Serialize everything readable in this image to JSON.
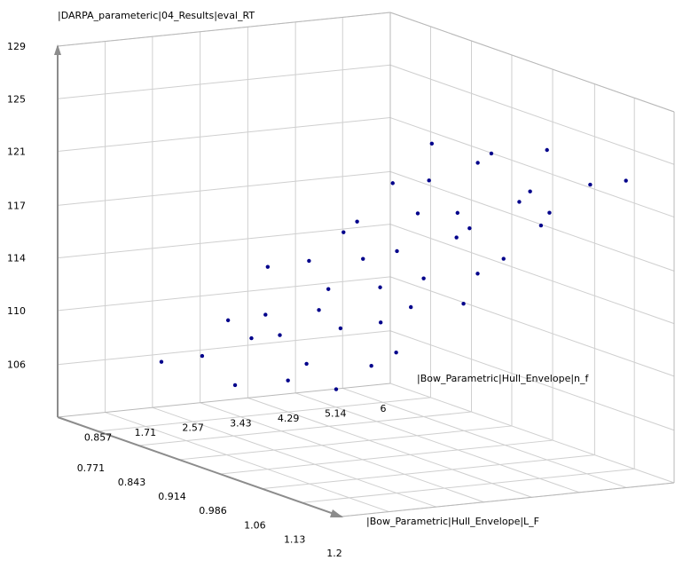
{
  "chart_data": {
    "type": "scatter3d",
    "z_label": "|DARPA_parameteric|04_Results|eval_RT",
    "x_label": "|Bow_Parametric|Hull_Envelope|n_f",
    "y_label": "|Bow_Parametric|Hull_Envelope|L_F",
    "color": "#00008b",
    "xlim": [
      0,
      6
    ],
    "ylim": [
      0.7,
      1.2
    ],
    "zlim": [
      102.1,
      128.9
    ],
    "xticks": [
      0.857,
      1.71,
      2.57,
      3.43,
      4.29,
      5.14,
      6
    ],
    "yticks": [
      0.771,
      0.843,
      0.914,
      0.986,
      1.06,
      1.13,
      1.2
    ],
    "zticks": [
      {
        "value": 105.9,
        "label": "106"
      },
      {
        "value": 109.8,
        "label": "110"
      },
      {
        "value": 113.6,
        "label": "114"
      },
      {
        "value": 117.4,
        "label": "117"
      },
      {
        "value": 121.3,
        "label": "121"
      },
      {
        "value": 125.1,
        "label": "125"
      },
      {
        "value": 128.9,
        "label": "129"
      }
    ],
    "grid": true,
    "x": [
      0.95,
      1.48,
      2.05,
      2.52,
      2.97,
      3.51,
      4.03,
      4.48,
      5.02,
      5.47,
      5.93,
      1.05,
      1.55,
      1.96,
      2.46,
      3.04,
      3.46,
      3.97,
      4.55,
      4.96,
      5.53,
      5.98,
      0.98,
      1.52,
      2.03,
      2.55,
      2.95,
      3.53,
      4.02,
      4.46,
      5.05,
      5.45,
      5.96,
      1.03,
      1.46,
      2.01,
      2.48,
      3.02,
      3.48,
      4.05,
      4.52,
      4.98,
      5.51,
      5.95
    ],
    "y": [
      0.79,
      0.81,
      0.8,
      0.82,
      0.78,
      0.8,
      0.81,
      0.79,
      0.8,
      0.82,
      0.78,
      0.91,
      0.89,
      0.9,
      0.92,
      0.88,
      0.9,
      0.91,
      0.89,
      0.92,
      0.9,
      0.88,
      1.01,
      0.99,
      1.0,
      1.02,
      0.98,
      1.0,
      1.01,
      0.99,
      1.02,
      1.0,
      0.98,
      1.09,
      1.11,
      1.1,
      1.08,
      1.12,
      1.1,
      1.09,
      1.11,
      1.08,
      1.1,
      1.12
    ],
    "z": [
      107.0,
      107.5,
      109.7,
      110.2,
      112.9,
      113.4,
      115.4,
      115.7,
      118.4,
      118.7,
      120.6,
      107.0,
      109.9,
      110.1,
      112.0,
      112.7,
      115.0,
      115.5,
      117.7,
      118.0,
      121.1,
      121.3,
      108.8,
      109.5,
      112.0,
      112.5,
      114.3,
      115.0,
      117.9,
      118.1,
      120.2,
      120.5,
      123.0,
      109.3,
      111.1,
      111.7,
      114.5,
      115.1,
      116.8,
      117.5,
      120.0,
      120.3,
      122.4,
      122.8
    ]
  }
}
